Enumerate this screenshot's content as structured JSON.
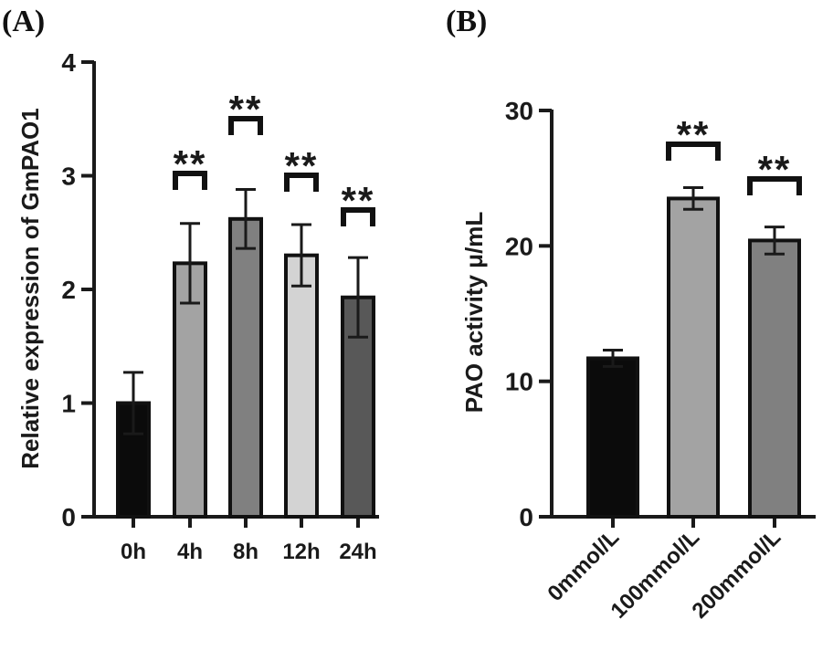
{
  "chart_data": [
    {
      "panel": "(A)",
      "type": "bar",
      "title": "",
      "xlabel": "",
      "ylabel": "Relative expression of GmPAO1",
      "ylim": [
        0,
        4
      ],
      "yticks": [
        "0",
        "1",
        "2",
        "3",
        "4"
      ],
      "categories": [
        "0h",
        "4h",
        "8h",
        "12h",
        "24h"
      ],
      "values": [
        1.0,
        2.23,
        2.62,
        2.3,
        1.93
      ],
      "errors": [
        0.27,
        0.35,
        0.26,
        0.27,
        0.35
      ],
      "significance": [
        "",
        "**",
        "**",
        "**",
        "**"
      ],
      "colors": [
        "#0b0b0b",
        "#a3a3a3",
        "#808080",
        "#d3d3d3",
        "#585858"
      ]
    },
    {
      "panel": "(B)",
      "type": "bar",
      "title": "",
      "xlabel": "",
      "ylabel": "PAO activity μ/mL",
      "ylim": [
        0,
        30
      ],
      "yticks": [
        "0",
        "10",
        "20",
        "30"
      ],
      "categories": [
        "0mmol/L",
        "100mmol/L",
        "200mmol/L"
      ],
      "values": [
        11.7,
        23.5,
        20.4
      ],
      "errors": [
        0.6,
        0.8,
        1.0
      ],
      "significance": [
        "",
        "**",
        "**"
      ],
      "colors": [
        "#0b0b0b",
        "#a3a3a3",
        "#808080"
      ]
    }
  ]
}
